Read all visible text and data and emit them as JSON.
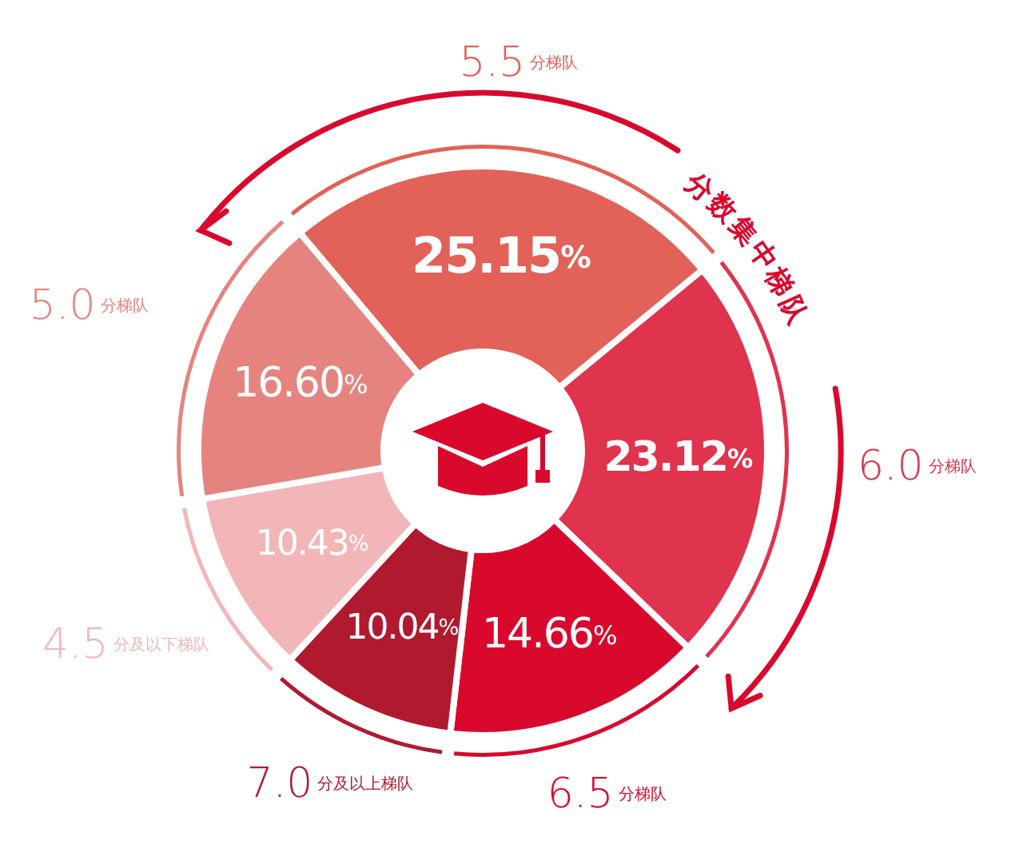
{
  "chart_data": {
    "type": "donut",
    "categories": [
      "5.5分梯队",
      "6.0分梯队",
      "6.5分梯队",
      "7.0分及以上梯队",
      "4.5分及以下梯队",
      "5.0分梯队"
    ],
    "values": [
      25.15,
      23.12,
      14.66,
      10.04,
      10.43,
      16.6
    ],
    "colors": [
      "#e2625a",
      "#e0334d",
      "#d9092d",
      "#b11a2e",
      "#f2b6b8",
      "#e5847f"
    ],
    "value_labels": [
      "25.15%",
      "23.12%",
      "14.66%",
      "10.04%",
      "10.43%",
      "16.60%"
    ],
    "annotations": [
      "分数集中梯队"
    ]
  }
}
